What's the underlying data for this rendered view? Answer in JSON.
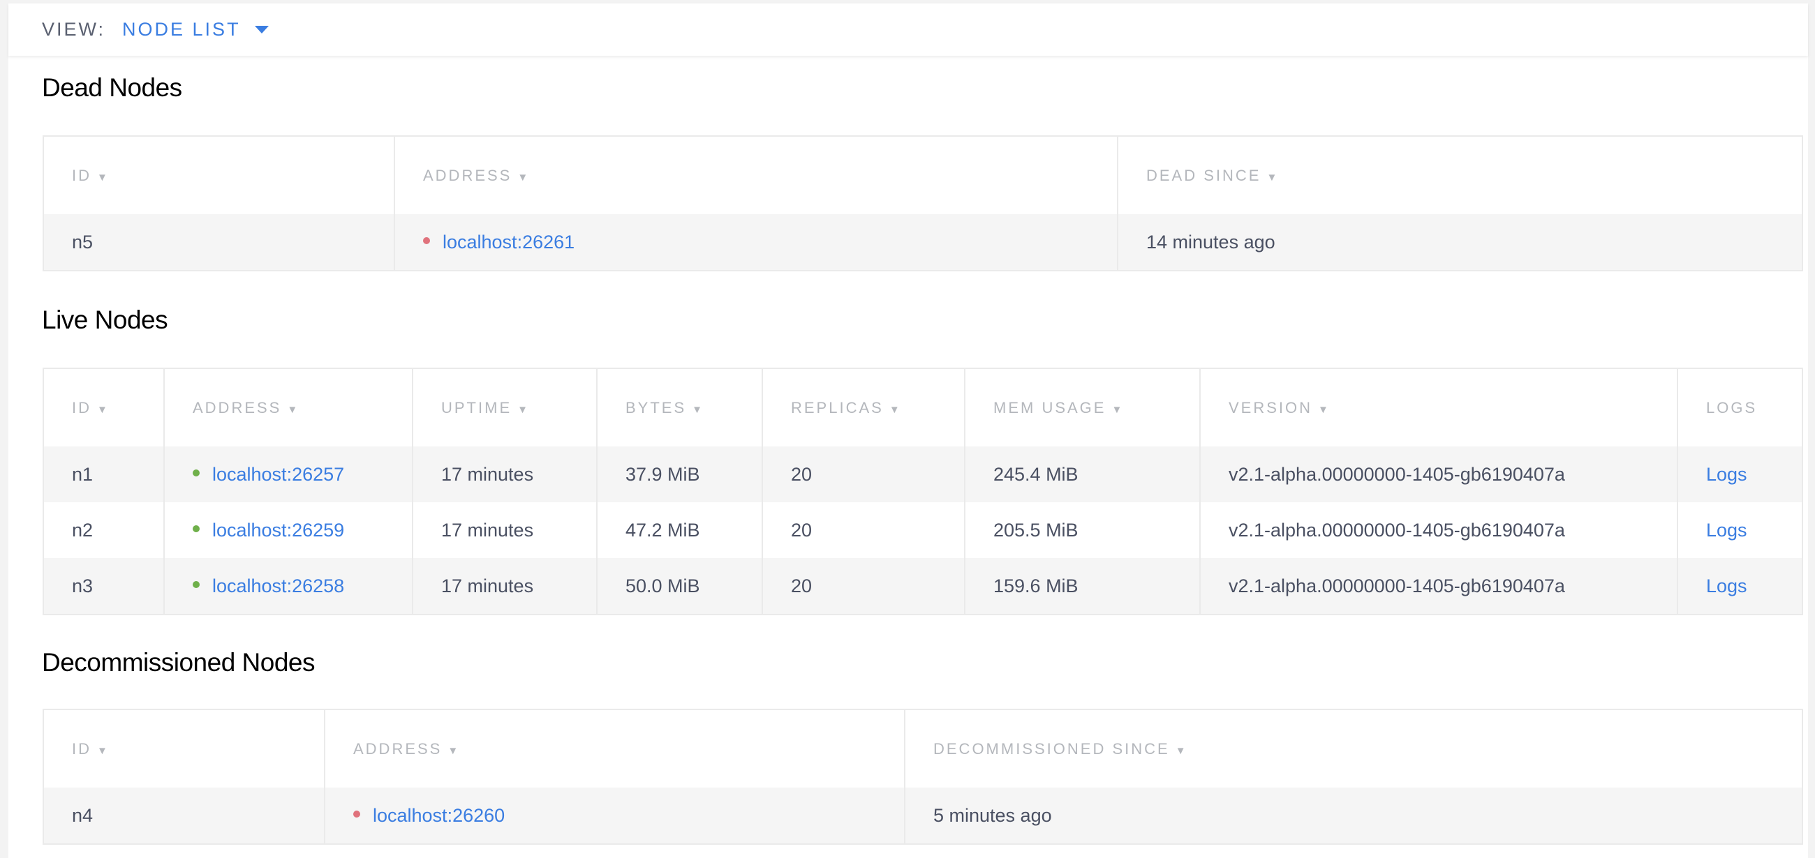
{
  "view": {
    "label": "VIEW:",
    "value": "NODE LIST"
  },
  "colors": {
    "accent": "#3a7de1",
    "live": "#6fb04a",
    "dead": "#e0727c"
  },
  "dead": {
    "title": "Dead Nodes",
    "headers": [
      "ID",
      "ADDRESS",
      "DEAD SINCE"
    ],
    "rows": [
      {
        "id": "n5",
        "address": "localhost:26261",
        "since": "14 minutes ago"
      }
    ]
  },
  "live": {
    "title": "Live Nodes",
    "headers": [
      "ID",
      "ADDRESS",
      "UPTIME",
      "BYTES",
      "REPLICAS",
      "MEM USAGE",
      "VERSION",
      "LOGS"
    ],
    "rows": [
      {
        "id": "n1",
        "address": "localhost:26257",
        "uptime": "17 minutes",
        "bytes": "37.9 MiB",
        "replicas": "20",
        "mem": "245.4 MiB",
        "version": "v2.1-alpha.00000000-1405-gb6190407a",
        "logs": "Logs"
      },
      {
        "id": "n2",
        "address": "localhost:26259",
        "uptime": "17 minutes",
        "bytes": "47.2 MiB",
        "replicas": "20",
        "mem": "205.5 MiB",
        "version": "v2.1-alpha.00000000-1405-gb6190407a",
        "logs": "Logs"
      },
      {
        "id": "n3",
        "address": "localhost:26258",
        "uptime": "17 minutes",
        "bytes": "50.0 MiB",
        "replicas": "20",
        "mem": "159.6 MiB",
        "version": "v2.1-alpha.00000000-1405-gb6190407a",
        "logs": "Logs"
      }
    ]
  },
  "decommissioned": {
    "title": "Decommissioned Nodes",
    "headers": [
      "ID",
      "ADDRESS",
      "DECOMMISSIONED SINCE"
    ],
    "rows": [
      {
        "id": "n4",
        "address": "localhost:26260",
        "since": "5 minutes ago"
      }
    ]
  }
}
